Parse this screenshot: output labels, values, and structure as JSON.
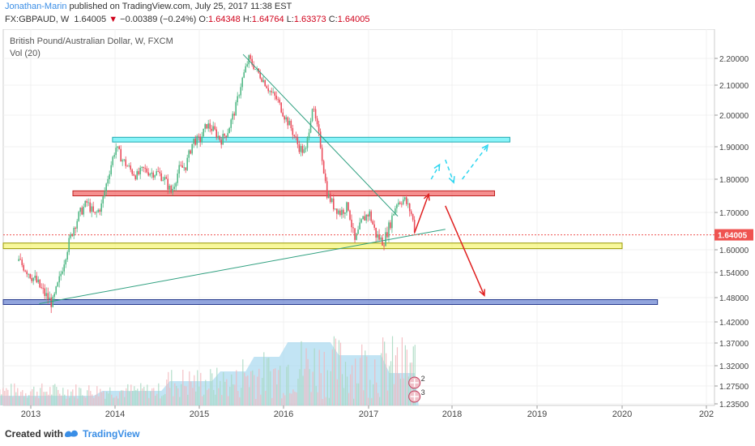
{
  "header": {
    "author": "Jonathan-Marin",
    "published_text": " published on TradingView.com, July 25, 2017 11:38 EST",
    "symbol": "FX:GBPAUD, W",
    "last": "1.64005",
    "change": "−0.00389 (−0.24%)",
    "o_label": "O:",
    "o_value": "1.64348",
    "h_label": "H:",
    "h_value": "1.64764",
    "l_label": "L:",
    "l_value": "1.63373",
    "c_label": "C:",
    "c_value": "1.64005"
  },
  "legend": {
    "title": "British Pound/Australian Dollar, W, FXCM",
    "vol": "Vol (20)"
  },
  "footer": {
    "created": "Created with",
    "brand": "TradingView"
  },
  "colors": {
    "up": "#53b987",
    "down": "#eb4d5c",
    "zone_cyan": "#61f0f7",
    "zone_red": "#f26969",
    "zone_yellow": "#f6f67a",
    "zone_blue": "#6c86d1",
    "arrow_red": "#e02020",
    "arrow_cyan": "#2ed6f0",
    "trend": "#30a080",
    "price_tag": "#ef5350"
  },
  "chart_data": {
    "type": "candlestick",
    "title": "British Pound/Australian Dollar, W, FXCM",
    "x_labels": [
      "2013",
      "2014",
      "2015",
      "2016",
      "2017",
      "2018",
      "2019",
      "2020",
      "202"
    ],
    "y_ticks": [
      "2.20000",
      "2.10000",
      "2.00000",
      "1.90000",
      "1.80000",
      "1.70000",
      "1.60000",
      "1.54000",
      "1.48000",
      "1.42000",
      "1.37000",
      "1.32000",
      "1.27500",
      "1.23500"
    ],
    "last_price": "1.64005",
    "price_path": [
      [
        2012.85,
        1.57
      ],
      [
        2012.95,
        1.545
      ],
      [
        2013.05,
        1.52
      ],
      [
        2013.15,
        1.49
      ],
      [
        2013.25,
        1.465
      ],
      [
        2013.33,
        1.52
      ],
      [
        2013.42,
        1.6
      ],
      [
        2013.5,
        1.66
      ],
      [
        2013.58,
        1.7
      ],
      [
        2013.66,
        1.73
      ],
      [
        2013.75,
        1.69
      ],
      [
        2013.83,
        1.72
      ],
      [
        2013.92,
        1.82
      ],
      [
        2014.0,
        1.9
      ],
      [
        2014.08,
        1.86
      ],
      [
        2014.17,
        1.83
      ],
      [
        2014.25,
        1.81
      ],
      [
        2014.33,
        1.83
      ],
      [
        2014.42,
        1.82
      ],
      [
        2014.5,
        1.82
      ],
      [
        2014.58,
        1.8
      ],
      [
        2014.66,
        1.76
      ],
      [
        2014.75,
        1.83
      ],
      [
        2014.83,
        1.84
      ],
      [
        2014.92,
        1.92
      ],
      [
        2015.0,
        1.92
      ],
      [
        2015.08,
        1.97
      ],
      [
        2015.17,
        1.95
      ],
      [
        2015.25,
        1.92
      ],
      [
        2015.33,
        1.95
      ],
      [
        2015.42,
        2.02
      ],
      [
        2015.5,
        2.12
      ],
      [
        2015.58,
        2.2
      ],
      [
        2015.66,
        2.16
      ],
      [
        2015.75,
        2.12
      ],
      [
        2015.83,
        2.08
      ],
      [
        2015.92,
        2.05
      ],
      [
        2016.0,
        2.0
      ],
      [
        2016.08,
        1.96
      ],
      [
        2016.17,
        1.9
      ],
      [
        2016.25,
        1.88
      ],
      [
        2016.33,
        2.03
      ],
      [
        2016.42,
        1.92
      ],
      [
        2016.5,
        1.76
      ],
      [
        2016.58,
        1.72
      ],
      [
        2016.66,
        1.7
      ],
      [
        2016.75,
        1.72
      ],
      [
        2016.83,
        1.62
      ],
      [
        2016.92,
        1.68
      ],
      [
        2017.0,
        1.7
      ],
      [
        2017.08,
        1.64
      ],
      [
        2017.17,
        1.62
      ],
      [
        2017.25,
        1.67
      ],
      [
        2017.33,
        1.73
      ],
      [
        2017.42,
        1.74
      ],
      [
        2017.5,
        1.7
      ],
      [
        2017.56,
        1.64
      ]
    ],
    "annotations": {
      "zones": [
        {
          "name": "cyan",
          "x0": 2013.97,
          "x1": 2018.68,
          "y0": 1.915,
          "y1": 1.93
        },
        {
          "name": "red",
          "x0": 2013.5,
          "x1": 2018.5,
          "y0": 1.75,
          "y1": 1.765
        },
        {
          "name": "yellow",
          "x0": 2012.5,
          "x1": 2020.0,
          "y0": 1.603,
          "y1": 1.618
        },
        {
          "name": "blue",
          "x0": 2012.5,
          "x1": 2020.42,
          "y0": 1.463,
          "y1": 1.475
        }
      ],
      "trendlines": [
        {
          "x0": 2015.52,
          "y0": 2.215,
          "x1": 2017.35,
          "y1": 1.69
        },
        {
          "x0": 2013.1,
          "y0": 1.465,
          "x1": 2017.92,
          "y1": 1.655
        }
      ],
      "red_arrows": [
        {
          "path": [
            [
              2017.55,
              1.645
            ],
            [
              2017.72,
              1.755
            ]
          ]
        },
        {
          "path": [
            [
              2017.92,
              1.72
            ],
            [
              2018.38,
              1.485
            ]
          ]
        }
      ],
      "cyan_arrows": [
        {
          "path": [
            [
              2017.75,
              1.8
            ],
            [
              2017.85,
              1.845
            ]
          ]
        },
        {
          "path": [
            [
              2017.92,
              1.86
            ],
            [
              2018.02,
              1.79
            ]
          ]
        },
        {
          "path": [
            [
              2018.12,
              1.8
            ],
            [
              2018.42,
              1.905
            ]
          ]
        }
      ]
    }
  }
}
